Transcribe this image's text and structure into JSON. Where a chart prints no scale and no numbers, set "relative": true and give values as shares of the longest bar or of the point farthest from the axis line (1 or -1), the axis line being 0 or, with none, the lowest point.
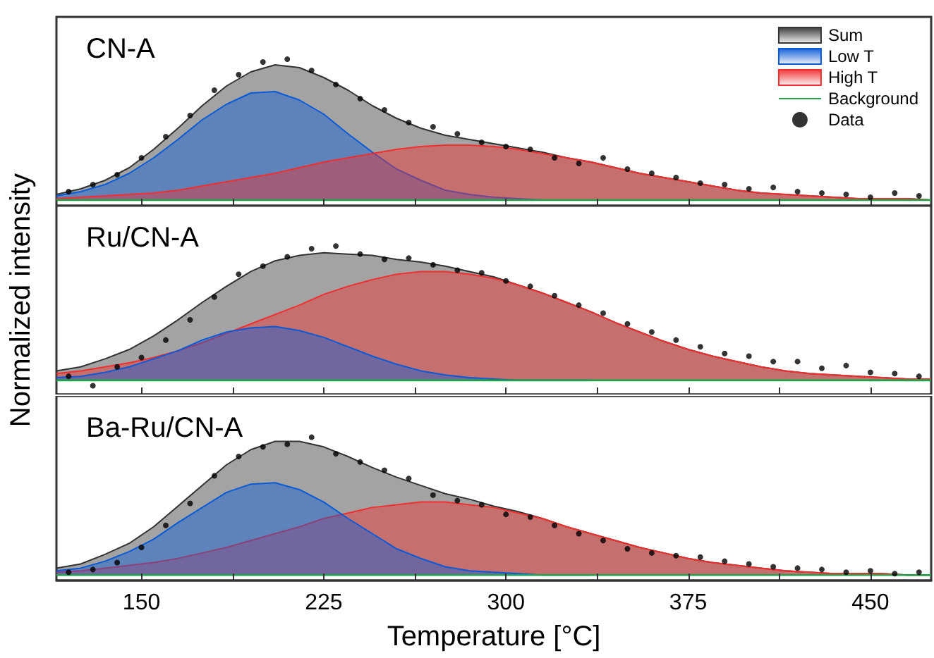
{
  "chart_data": [
    {
      "type": "area",
      "title": "CN-A",
      "relative": true,
      "tick_labels": false,
      "legend": "top right",
      "marker": "none",
      "x": [
        115,
        125,
        135,
        145,
        155,
        165,
        175,
        185,
        195,
        205,
        215,
        225,
        235,
        245,
        255,
        265,
        275,
        285,
        295,
        305,
        315,
        325,
        335,
        345,
        355,
        365,
        375,
        385,
        395,
        405,
        415,
        425,
        435,
        445,
        455,
        465,
        475
      ],
      "xlim": [
        115,
        475
      ],
      "xticks": [
        150,
        {
          "value": 187.5,
          "label": null
        },
        225,
        {
          "value": 262.5,
          "label": null
        },
        300,
        {
          "value": 337.5,
          "label": null
        },
        375,
        {
          "value": 412.5,
          "label": null
        },
        450
      ],
      "series": [
        {
          "name": "Sum",
          "type": "area",
          "color": "#333333",
          "values": [
            0.04,
            0.08,
            0.14,
            0.23,
            0.36,
            0.51,
            0.67,
            0.81,
            0.91,
            0.96,
            0.94,
            0.87,
            0.78,
            0.67,
            0.58,
            0.51,
            0.46,
            0.43,
            0.4,
            0.37,
            0.34,
            0.3,
            0.27,
            0.23,
            0.19,
            0.16,
            0.13,
            0.1,
            0.07,
            0.05,
            0.04,
            0.03,
            0.02,
            0.01,
            0.01,
            0.01,
            0.0
          ]
        },
        {
          "name": "Low T",
          "type": "area",
          "color": "#0a5ad6",
          "x": [
            115,
            125,
            135,
            145,
            155,
            165,
            175,
            185,
            195,
            205,
            215,
            225,
            235,
            245,
            255,
            265,
            275,
            285,
            295,
            305,
            315,
            325,
            335
          ],
          "values": [
            0.03,
            0.06,
            0.11,
            0.19,
            0.3,
            0.43,
            0.57,
            0.68,
            0.76,
            0.77,
            0.71,
            0.61,
            0.47,
            0.34,
            0.22,
            0.14,
            0.07,
            0.04,
            0.02,
            0.01,
            0.0,
            0.0,
            0.0
          ]
        },
        {
          "name": "High T",
          "type": "area",
          "color": "#f03030",
          "values": [
            0.01,
            0.02,
            0.03,
            0.04,
            0.05,
            0.07,
            0.1,
            0.13,
            0.16,
            0.19,
            0.23,
            0.27,
            0.3,
            0.33,
            0.36,
            0.38,
            0.39,
            0.39,
            0.38,
            0.36,
            0.33,
            0.3,
            0.27,
            0.23,
            0.19,
            0.16,
            0.13,
            0.1,
            0.07,
            0.05,
            0.04,
            0.03,
            0.02,
            0.01,
            0.01,
            0.01,
            0.0
          ]
        },
        {
          "name": "Background",
          "type": "line",
          "color": "#1ea34a",
          "x": [
            115,
            475
          ],
          "values": [
            0,
            0
          ]
        },
        {
          "name": "Data",
          "type": "scatter",
          "color": "#000000",
          "marker": "circle",
          "x": [
            120,
            130,
            140,
            150,
            160,
            170,
            180,
            190,
            200,
            210,
            220,
            230,
            240,
            250,
            260,
            270,
            280,
            290,
            300,
            310,
            320,
            330,
            340,
            350,
            360,
            370,
            380,
            390,
            400,
            410,
            420,
            430,
            440,
            450,
            460,
            470
          ],
          "values": [
            0.06,
            0.11,
            0.18,
            0.3,
            0.45,
            0.6,
            0.78,
            0.89,
            0.98,
            1.0,
            0.92,
            0.82,
            0.72,
            0.64,
            0.55,
            0.52,
            0.47,
            0.41,
            0.38,
            0.36,
            0.3,
            0.26,
            0.3,
            0.22,
            0.19,
            0.16,
            0.12,
            0.11,
            0.08,
            0.09,
            0.06,
            0.05,
            0.04,
            0.02,
            0.05,
            0.03
          ]
        }
      ]
    },
    {
      "type": "area",
      "title": "Ru/CN-A",
      "ylabel": "Normalized intensity",
      "relative": true,
      "tick_labels": false,
      "marker": "none",
      "x": [
        115,
        125,
        135,
        145,
        155,
        165,
        175,
        185,
        195,
        205,
        215,
        225,
        235,
        245,
        255,
        265,
        275,
        285,
        295,
        305,
        315,
        325,
        335,
        345,
        355,
        365,
        375,
        385,
        395,
        405,
        415,
        425,
        435,
        445,
        455,
        465,
        475
      ],
      "xlim": [
        115,
        475
      ],
      "xticks": [
        150,
        {
          "value": 187.5,
          "label": null
        },
        225,
        {
          "value": 262.5,
          "label": null
        },
        300,
        {
          "value": 337.5,
          "label": null
        },
        375,
        {
          "value": 412.5,
          "label": null
        },
        450
      ],
      "series": [
        {
          "type": "area",
          "color": "#333333",
          "values": [
            0.07,
            0.1,
            0.16,
            0.23,
            0.33,
            0.45,
            0.58,
            0.7,
            0.81,
            0.89,
            0.93,
            0.95,
            0.94,
            0.93,
            0.9,
            0.88,
            0.85,
            0.81,
            0.77,
            0.71,
            0.65,
            0.58,
            0.51,
            0.43,
            0.36,
            0.29,
            0.23,
            0.18,
            0.14,
            0.1,
            0.07,
            0.05,
            0.04,
            0.03,
            0.02,
            0.01,
            0.01
          ]
        },
        {
          "type": "area",
          "color": "#f03030",
          "values": [
            0.05,
            0.07,
            0.1,
            0.13,
            0.17,
            0.22,
            0.28,
            0.35,
            0.42,
            0.49,
            0.56,
            0.64,
            0.7,
            0.75,
            0.79,
            0.81,
            0.81,
            0.79,
            0.76,
            0.71,
            0.65,
            0.58,
            0.51,
            0.43,
            0.36,
            0.29,
            0.23,
            0.18,
            0.14,
            0.1,
            0.07,
            0.05,
            0.04,
            0.03,
            0.02,
            0.01,
            0.01
          ]
        },
        {
          "type": "area",
          "color": "#0a5ad6",
          "x": [
            115,
            125,
            135,
            145,
            155,
            165,
            175,
            185,
            195,
            205,
            215,
            225,
            235,
            245,
            255,
            265,
            275,
            285,
            295,
            305,
            315,
            325,
            335
          ],
          "values": [
            0.02,
            0.03,
            0.06,
            0.1,
            0.16,
            0.22,
            0.3,
            0.36,
            0.39,
            0.4,
            0.37,
            0.32,
            0.25,
            0.18,
            0.12,
            0.07,
            0.04,
            0.02,
            0.01,
            0.0,
            0.0,
            0.0,
            0.0
          ]
        },
        {
          "type": "line",
          "color": "#1ea34a",
          "x": [
            115,
            475
          ],
          "values": [
            0,
            0
          ]
        },
        {
          "type": "scatter",
          "color": "#000000",
          "marker": "circle",
          "x": [
            120,
            130,
            140,
            150,
            160,
            170,
            180,
            190,
            200,
            210,
            220,
            230,
            240,
            250,
            260,
            270,
            280,
            290,
            300,
            310,
            320,
            330,
            340,
            350,
            360,
            370,
            380,
            390,
            400,
            410,
            420,
            430,
            440,
            450,
            460,
            470
          ],
          "values": [
            0.03,
            -0.04,
            0.1,
            0.17,
            0.3,
            0.45,
            0.62,
            0.79,
            0.85,
            0.92,
            0.98,
            1.0,
            0.94,
            0.9,
            0.91,
            0.86,
            0.82,
            0.8,
            0.74,
            0.7,
            0.63,
            0.56,
            0.5,
            0.42,
            0.36,
            0.3,
            0.25,
            0.2,
            0.18,
            0.14,
            0.14,
            0.09,
            0.11,
            0.06,
            0.05,
            0.03
          ]
        }
      ]
    },
    {
      "type": "area",
      "title": "Ba-Ru/CN-A",
      "xlabel": "Temperature [°C]",
      "relative": true,
      "tick_labels": "x",
      "marker": "none",
      "x": [
        115,
        125,
        135,
        145,
        155,
        165,
        175,
        185,
        195,
        205,
        215,
        225,
        235,
        245,
        255,
        265,
        275,
        285,
        295,
        305,
        315,
        325,
        335,
        345,
        355,
        365,
        375,
        385,
        395,
        405,
        415,
        425,
        435,
        445,
        455,
        465,
        475
      ],
      "xlim": [
        115,
        475
      ],
      "xticks": [
        150,
        {
          "value": 187.5,
          "label": null
        },
        225,
        {
          "value": 262.5,
          "label": null
        },
        300,
        {
          "value": 337.5,
          "label": null
        },
        375,
        {
          "value": 412.5,
          "label": null
        },
        450
      ],
      "series": [
        {
          "type": "area",
          "color": "#333333",
          "values": [
            0.05,
            0.08,
            0.15,
            0.23,
            0.35,
            0.5,
            0.65,
            0.8,
            0.91,
            0.97,
            0.97,
            0.93,
            0.86,
            0.78,
            0.71,
            0.65,
            0.59,
            0.55,
            0.5,
            0.46,
            0.41,
            0.35,
            0.3,
            0.25,
            0.2,
            0.16,
            0.12,
            0.09,
            0.07,
            0.05,
            0.03,
            0.02,
            0.01,
            0.01,
            0.01,
            0.0,
            0.0
          ]
        },
        {
          "type": "area",
          "color": "#f03030",
          "values": [
            0.02,
            0.03,
            0.05,
            0.07,
            0.09,
            0.12,
            0.16,
            0.2,
            0.25,
            0.3,
            0.35,
            0.41,
            0.45,
            0.49,
            0.51,
            0.53,
            0.53,
            0.51,
            0.49,
            0.45,
            0.41,
            0.35,
            0.3,
            0.25,
            0.2,
            0.16,
            0.12,
            0.09,
            0.07,
            0.05,
            0.03,
            0.02,
            0.01,
            0.01,
            0.01,
            0.0,
            0.0
          ]
        },
        {
          "type": "area",
          "color": "#0a5ad6",
          "x": [
            115,
            125,
            135,
            145,
            155,
            165,
            175,
            185,
            195,
            205,
            215,
            225,
            235,
            245,
            255,
            265,
            275,
            285,
            295,
            305,
            315,
            325,
            335
          ],
          "values": [
            0.03,
            0.05,
            0.1,
            0.17,
            0.26,
            0.38,
            0.49,
            0.6,
            0.66,
            0.67,
            0.62,
            0.53,
            0.41,
            0.3,
            0.19,
            0.12,
            0.06,
            0.03,
            0.02,
            0.01,
            0.0,
            0.0,
            0.0
          ]
        },
        {
          "type": "line",
          "color": "#1ea34a",
          "x": [
            115,
            475
          ],
          "values": [
            0,
            0
          ]
        },
        {
          "type": "scatter",
          "color": "#000000",
          "marker": "circle",
          "x": [
            120,
            130,
            140,
            150,
            160,
            170,
            180,
            190,
            200,
            210,
            220,
            230,
            240,
            250,
            260,
            270,
            280,
            290,
            300,
            310,
            320,
            330,
            340,
            350,
            360,
            370,
            380,
            390,
            400,
            410,
            420,
            430,
            440,
            450,
            460,
            470
          ],
          "values": [
            0.02,
            0.04,
            0.09,
            0.2,
            0.36,
            0.52,
            0.72,
            0.86,
            0.93,
            0.95,
            1.0,
            0.88,
            0.82,
            0.76,
            0.7,
            0.58,
            0.54,
            0.51,
            0.44,
            0.42,
            0.36,
            0.3,
            0.25,
            0.19,
            0.16,
            0.14,
            0.13,
            0.1,
            0.08,
            0.06,
            0.05,
            0.04,
            0.02,
            0.03,
            0.01,
            0.02
          ]
        }
      ]
    }
  ]
}
